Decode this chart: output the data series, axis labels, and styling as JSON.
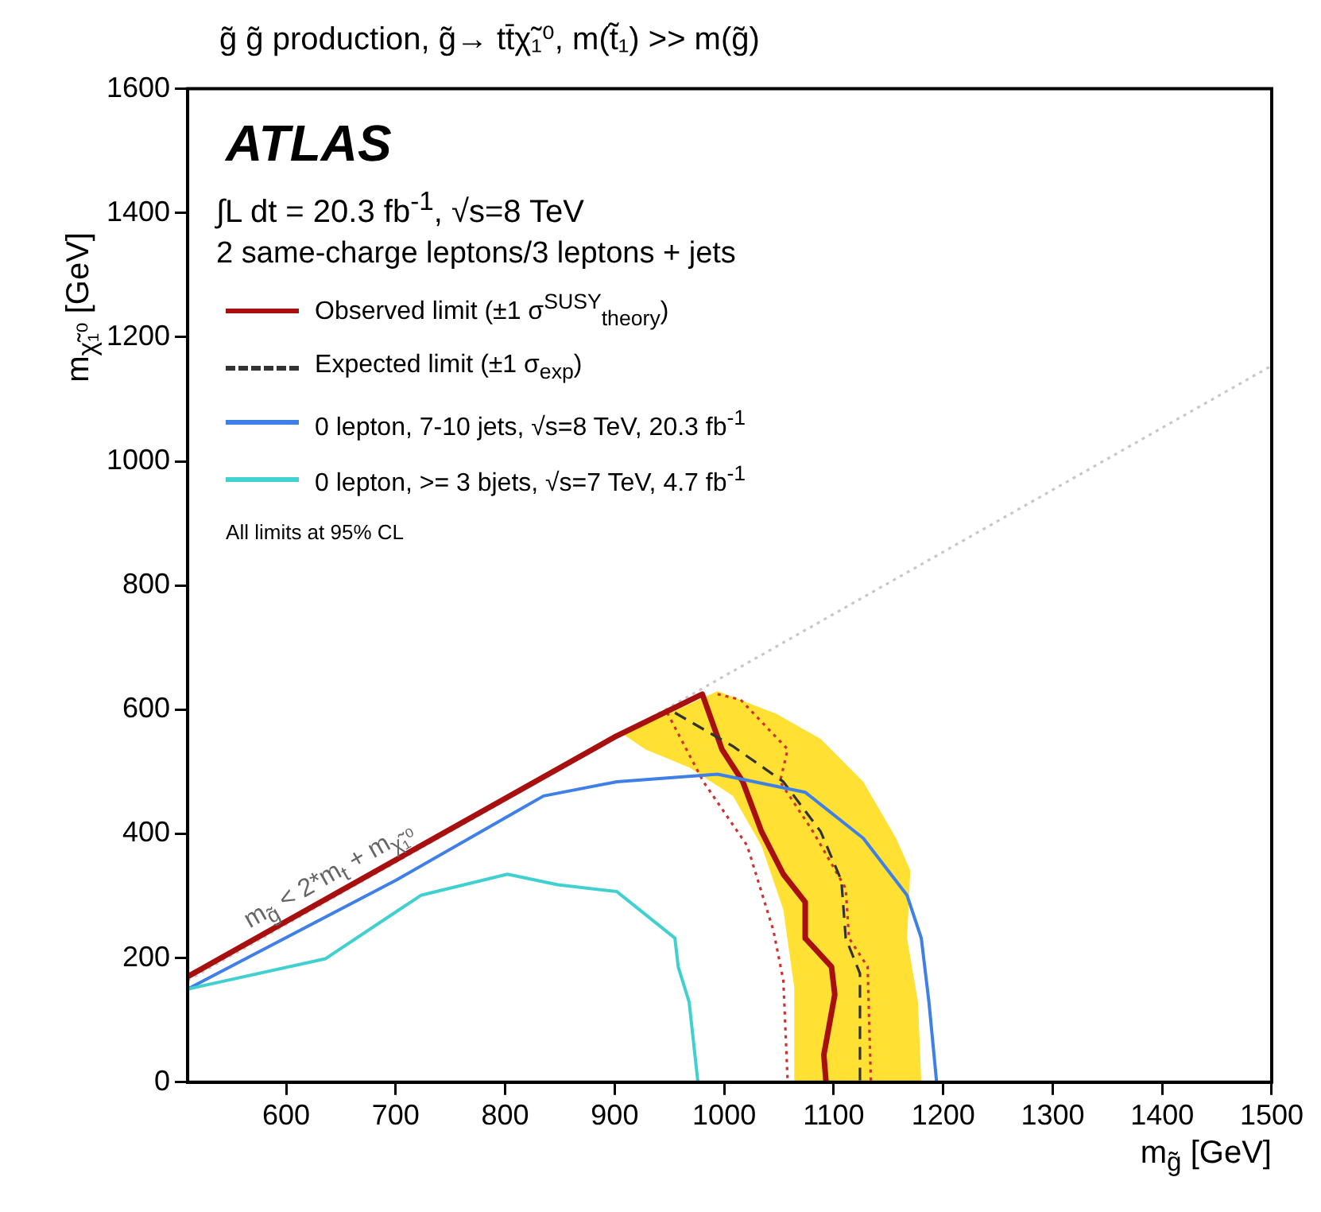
{
  "chart_data": {
    "type": "line",
    "title": "g̃ g̃ production, g̃→ tt̄χ̃₁⁰, m(t̃₁) >> m(g̃)",
    "xlabel": "m$_{g̃}$ [GeV]",
    "ylabel": "m$_{χ̃₁⁰}$ [GeV]",
    "xlim": [
      510,
      1500
    ],
    "xticks": [
      600,
      700,
      800,
      900,
      1000,
      1100,
      1200,
      1300,
      1400,
      1500
    ],
    "ylim": [
      0,
      1600
    ],
    "yticks": [
      0,
      200,
      400,
      600,
      800,
      1000,
      1200,
      1400,
      1600
    ],
    "grid": false,
    "legend": "top left",
    "annotations": [
      "ATLAS",
      "∫L dt = 20.3 fb$^{-1}$, √s=8 TeV",
      "2 same-charge leptons/3 leptons + jets",
      "All limits at 95% CL",
      {
        "text": "m$_{g̃}$ < 2*m$_{t}$ + m$_{χ̃₁⁰}$",
        "x": 640,
        "y": 294
      }
    ],
    "series": [
      {
        "type": "line",
        "color": "#c8c8c8",
        "line_style": "dotted",
        "x": [
          510,
          1500
        ],
        "values": [
          164,
          1154
        ]
      },
      {
        "type": "area",
        "color": "#ffe033",
        "x": [
          908,
          994,
          1048,
          1088,
          1127,
          1157,
          1170,
          1167,
          1177,
          1180,
          1064,
          1064,
          1054,
          1034,
          1008,
          968,
          928
        ],
        "values": [
          560,
          630,
          593,
          553,
          484,
          393,
          341,
          232,
          129,
          0,
          0,
          152,
          278,
          381,
          461,
          507,
          536
        ]
      },
      {
        "type": "line",
        "color": "#cc3333",
        "line_style": "dotted",
        "x": [
          948,
          981,
          1021,
          1045,
          1054,
          1058
        ],
        "values": [
          595,
          484,
          381,
          244,
          164,
          0
        ]
      },
      {
        "type": "line",
        "color": "#cc3333",
        "line_style": "dotted",
        "x": [
          994,
          1015,
          1058,
          1051,
          1081,
          1111,
          1114,
          1131,
          1134
        ],
        "values": [
          625,
          616,
          536,
          484,
          404,
          312,
          232,
          186,
          0
        ]
      },
      {
        "type": "line",
        "name": "Observed limit (±1 σ$^{SUSY}$$_{theory}$)",
        "color": "#a80f0f",
        "line_style": "solid",
        "x": [
          510,
          900,
          980,
          998,
          1017,
          1034,
          1054,
          1074,
          1074,
          1098,
          1101,
          1091,
          1093
        ],
        "values": [
          170,
          556,
          625,
          536,
          484,
          404,
          335,
          290,
          232,
          186,
          141,
          44,
          0
        ]
      },
      {
        "type": "line",
        "name": "Expected limit (±1 σ$_{exp}$)",
        "color": "#333333",
        "line_style": "dashed",
        "x": [
          955,
          1008,
          1054,
          1088,
          1107,
          1111,
          1124,
          1124
        ],
        "values": [
          595,
          541,
          484,
          404,
          325,
          232,
          175,
          0
        ]
      },
      {
        "type": "line",
        "name": "0 lepton, 7-10 jets, √s=8 TeV, 20.3 fb$^{-1}$",
        "color": "#3f7fe8",
        "line_style": "solid",
        "x": [
          510,
          700,
          835,
          902,
          994,
          1074,
          1127,
          1167,
          1180,
          1187,
          1194
        ],
        "values": [
          150,
          325,
          461,
          484,
          496,
          467,
          393,
          301,
          232,
          129,
          0
        ]
      },
      {
        "type": "line",
        "name": "0 lepton, >= 3 bjets, √s=7 TeV, 4.7 fb$^{-1}$",
        "color": "#40d0d0",
        "line_style": "solid",
        "x": [
          510,
          636,
          723,
          802,
          848,
          902,
          955,
          958,
          968,
          976
        ],
        "values": [
          150,
          199,
          301,
          335,
          318,
          307,
          232,
          186,
          129,
          0
        ]
      }
    ]
  }
}
